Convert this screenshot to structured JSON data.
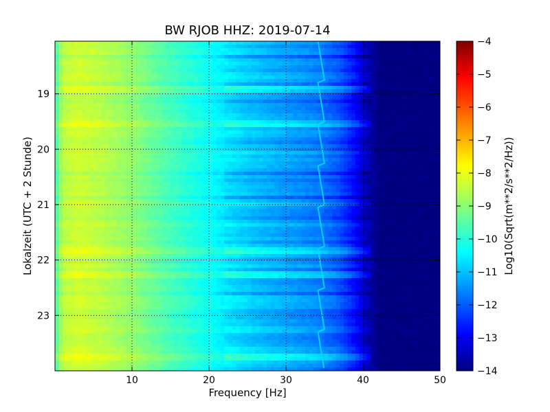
{
  "chart_data": {
    "type": "heatmap",
    "title": "BW RJOB HHZ: 2019-07-14",
    "xlabel": "Frequency [Hz]",
    "ylabel": "Lokalzeit (UTC + 2 Stunde)",
    "xlim": [
      0,
      50
    ],
    "ylim": [
      24,
      18.05
    ],
    "y_inverted": true,
    "x_ticks": [
      10,
      20,
      30,
      40,
      50
    ],
    "y_ticks": [
      19,
      20,
      21,
      22,
      23
    ],
    "grid": true,
    "colormap": "jet",
    "colorbar": {
      "label": "Log10(Sqrt(m**2/s**2/Hz))",
      "range": [
        -14,
        -4
      ],
      "ticks": [
        -4,
        -5,
        -6,
        -7,
        -8,
        -9,
        -10,
        -11,
        -12,
        -13,
        -14
      ]
    },
    "spectral_profile": {
      "frequency_hz": [
        0,
        1,
        3,
        6,
        10,
        14,
        18,
        22,
        26,
        30,
        34,
        37,
        39,
        40.5,
        42,
        50
      ],
      "log10_amplitude": [
        -9.6,
        -8.4,
        -8.2,
        -8.4,
        -8.8,
        -9.4,
        -9.9,
        -10.4,
        -10.8,
        -11.1,
        -11.4,
        -11.9,
        -12.6,
        -13.4,
        -14,
        -14
      ]
    },
    "tonal_line_frequency_hz": 34.5,
    "tonal_line_level": -10.6,
    "noisy_hours": [
      18.9,
      19.5,
      20.1,
      21.8,
      22.25,
      23.7
    ]
  },
  "colors": {
    "jet": [
      "#000080",
      "#0000ff",
      "#0080ff",
      "#00ffff",
      "#80ff80",
      "#ffff00",
      "#ff8000",
      "#ff0000",
      "#800000"
    ]
  }
}
